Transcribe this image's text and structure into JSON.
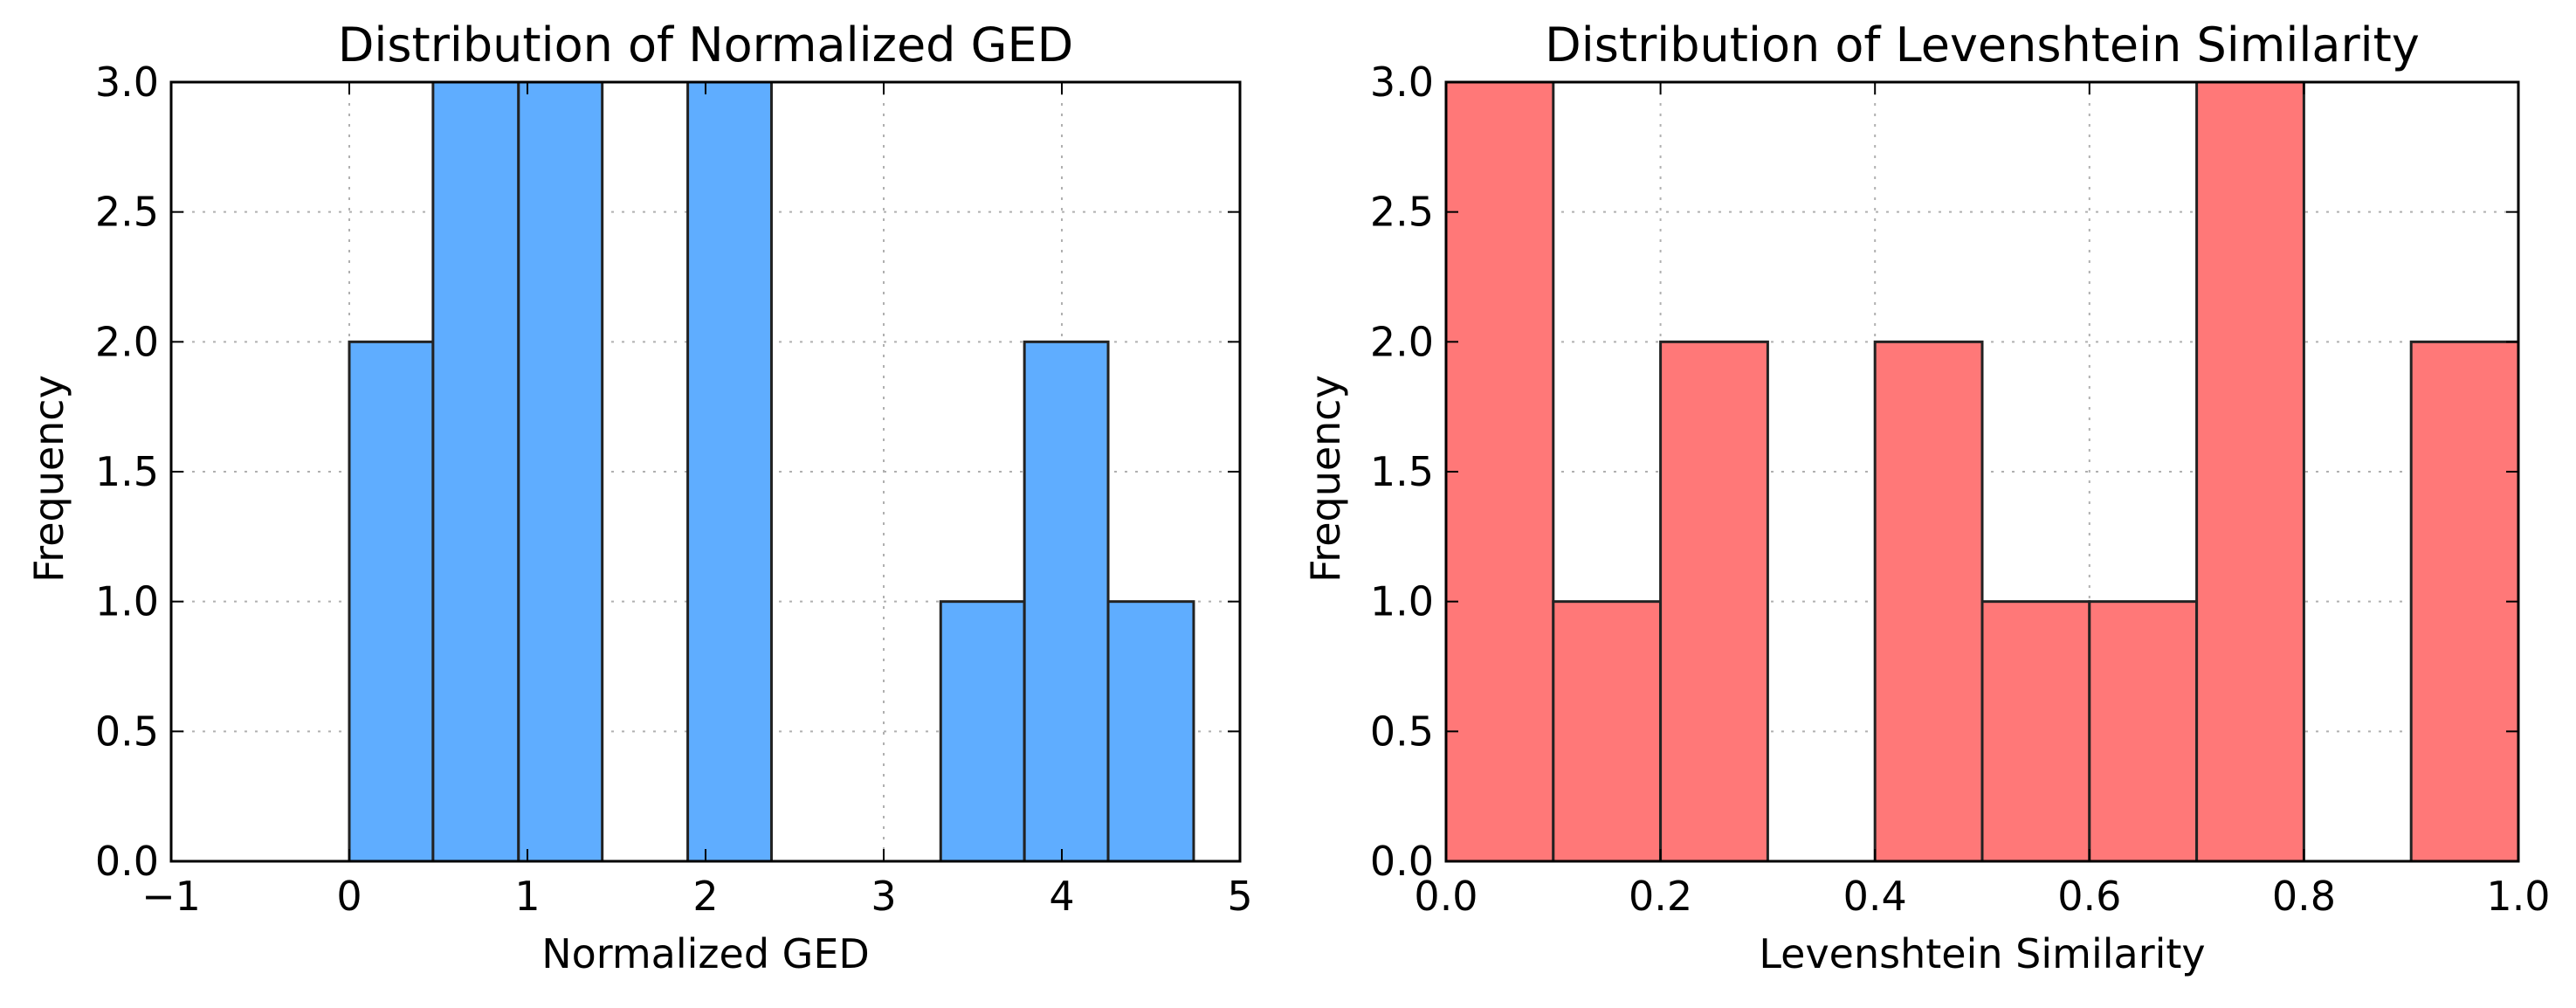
{
  "chart_data": [
    {
      "type": "bar",
      "title": "Distribution of Normalized GED",
      "xlabel": "Normalized GED",
      "ylabel": "Frequency",
      "xlim": [
        -1,
        5
      ],
      "ylim": [
        0,
        3
      ],
      "xticks": [
        -1,
        0,
        1,
        2,
        3,
        4,
        5
      ],
      "yticks": [
        0,
        0.5,
        1,
        1.5,
        2,
        2.5,
        3
      ],
      "xtick_labels": [
        "−1",
        "0",
        "1",
        "2",
        "3",
        "4",
        "5"
      ],
      "ytick_labels": [
        "0.0",
        "0.5",
        "1.0",
        "1.5",
        "2.0",
        "2.5",
        "3.0"
      ],
      "grid": true,
      "color": "#5fadff",
      "bins": [
        {
          "x0": 0.0,
          "x1": 0.47,
          "value": 2
        },
        {
          "x0": 0.47,
          "x1": 0.95,
          "value": 3
        },
        {
          "x0": 0.95,
          "x1": 1.42,
          "value": 3
        },
        {
          "x0": 1.42,
          "x1": 1.9,
          "value": 0
        },
        {
          "x0": 1.9,
          "x1": 2.37,
          "value": 3
        },
        {
          "x0": 2.37,
          "x1": 2.84,
          "value": 0
        },
        {
          "x0": 2.84,
          "x1": 3.32,
          "value": 0
        },
        {
          "x0": 3.32,
          "x1": 3.79,
          "value": 1
        },
        {
          "x0": 3.79,
          "x1": 4.26,
          "value": 2
        },
        {
          "x0": 4.26,
          "x1": 4.74,
          "value": 1
        }
      ]
    },
    {
      "type": "bar",
      "title": "Distribution of Levenshtein Similarity",
      "xlabel": "Levenshtein Similarity",
      "ylabel": "Frequency",
      "xlim": [
        0,
        1
      ],
      "ylim": [
        0,
        3
      ],
      "xticks": [
        0,
        0.2,
        0.4,
        0.6,
        0.8,
        1.0
      ],
      "yticks": [
        0,
        0.5,
        1,
        1.5,
        2,
        2.5,
        3
      ],
      "xtick_labels": [
        "0.0",
        "0.2",
        "0.4",
        "0.6",
        "0.8",
        "1.0"
      ],
      "ytick_labels": [
        "0.0",
        "0.5",
        "1.0",
        "1.5",
        "2.0",
        "2.5",
        "3.0"
      ],
      "grid": true,
      "color": "#ff7878",
      "bins": [
        {
          "x0": 0.0,
          "x1": 0.1,
          "value": 3
        },
        {
          "x0": 0.1,
          "x1": 0.2,
          "value": 1
        },
        {
          "x0": 0.2,
          "x1": 0.3,
          "value": 2
        },
        {
          "x0": 0.3,
          "x1": 0.4,
          "value": 0
        },
        {
          "x0": 0.4,
          "x1": 0.5,
          "value": 2
        },
        {
          "x0": 0.5,
          "x1": 0.6,
          "value": 1
        },
        {
          "x0": 0.6,
          "x1": 0.7,
          "value": 1
        },
        {
          "x0": 0.7,
          "x1": 0.8,
          "value": 3
        },
        {
          "x0": 0.8,
          "x1": 0.9,
          "value": 0
        },
        {
          "x0": 0.9,
          "x1": 1.0,
          "value": 2
        }
      ]
    }
  ]
}
